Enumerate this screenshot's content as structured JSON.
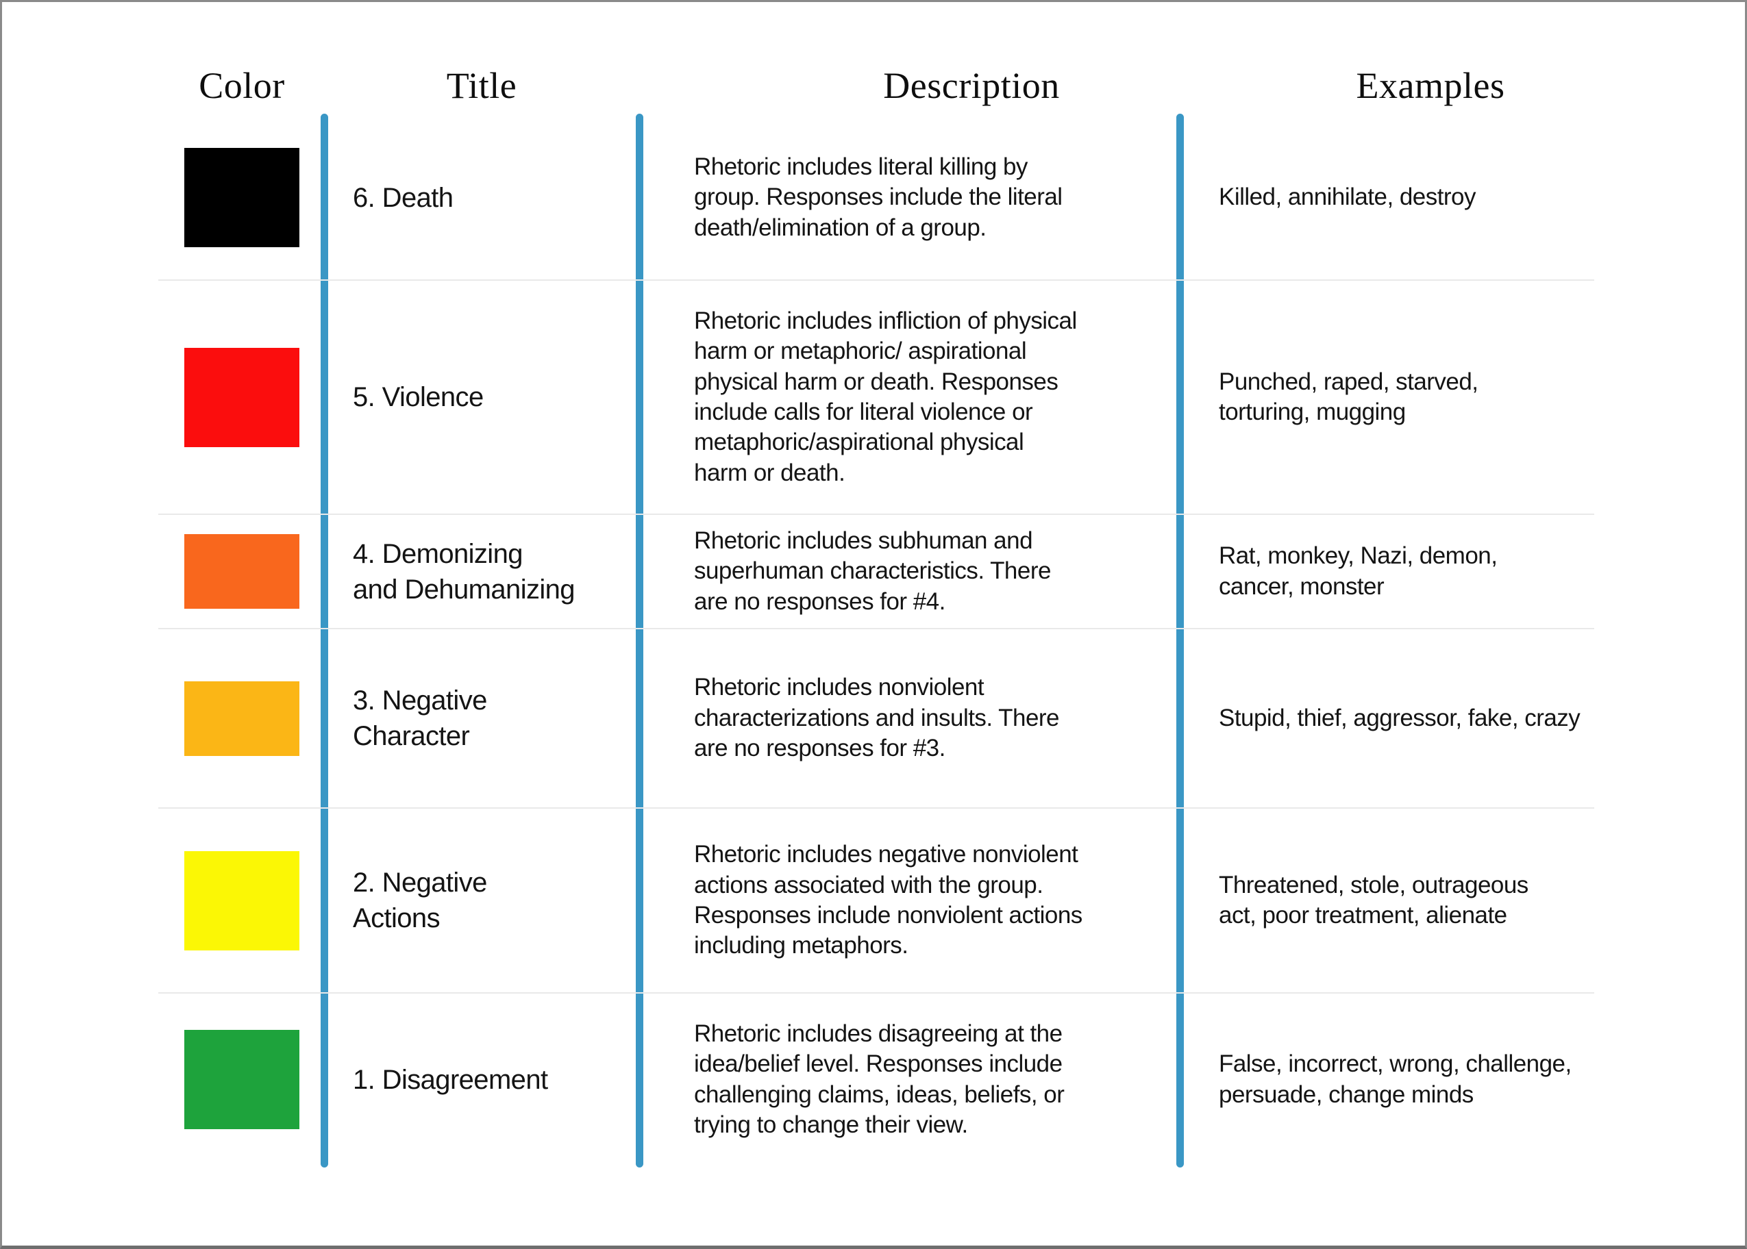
{
  "colors": {
    "column_separator_blue": "#3A97C5",
    "row_divider_gray": "#E9E9E9"
  },
  "table": {
    "headers": [
      "Color",
      "Title",
      "Description",
      "Examples"
    ],
    "rows": [
      {
        "color": "#000000",
        "color_name": "black",
        "title": "6. Death",
        "description": "Rhetoric includes literal killing by\ngroup. Responses include the literal\ndeath/elimination of a group.",
        "examples": "Killed, annihilate, destroy"
      },
      {
        "color": "#FB0D0D",
        "color_name": "red",
        "title": "5. Violence",
        "description": "Rhetoric includes infliction of physical\nharm or metaphoric/ aspirational\nphysical harm or death. Responses\ninclude calls for literal violence or\nmetaphoric/aspirational physical\nharm or death.",
        "examples": "Punched, raped, starved,\ntorturing, mugging"
      },
      {
        "color": "#F9671D",
        "color_name": "orange",
        "title": "4. Demonizing\nand Dehumanizing",
        "description": "Rhetoric includes subhuman and\nsuperhuman characteristics. There\nare no responses for #4.",
        "examples": "Rat, monkey, Nazi, demon,\ncancer, monster"
      },
      {
        "color": "#FBB616",
        "color_name": "amber",
        "title": "3. Negative\nCharacter",
        "description": "Rhetoric includes nonviolent\ncharacterizations and insults. There\nare no responses for #3.",
        "examples": "Stupid, thief, aggressor, fake, crazy"
      },
      {
        "color": "#FBF705",
        "color_name": "yellow",
        "title": "2. Negative\nActions",
        "description": "Rhetoric includes negative nonviolent\nactions associated with the group.\nResponses include nonviolent actions\nincluding metaphors.",
        "examples": "Threatened, stole, outrageous\nact, poor treatment, alienate"
      },
      {
        "color": "#1EA33C",
        "color_name": "green",
        "title": "1. Disagreement",
        "description": "Rhetoric includes disagreeing at the\nidea/belief level. Responses include\nchallenging claims, ideas, beliefs, or\ntrying to change their view.",
        "examples": "False, incorrect, wrong, challenge,\npersuade, change minds"
      }
    ]
  }
}
